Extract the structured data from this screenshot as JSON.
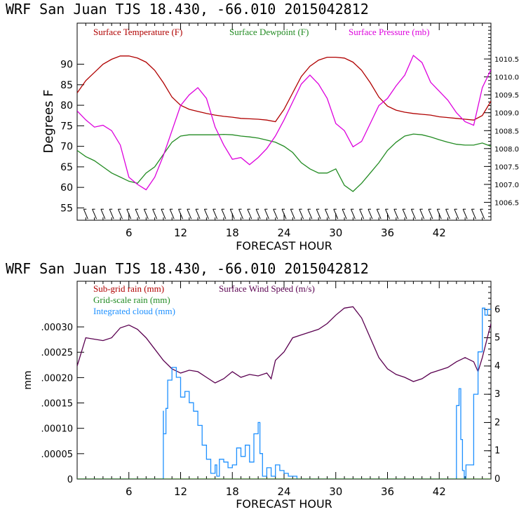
{
  "colors": {
    "temperature": "#b00000",
    "dewpoint": "#228b22",
    "pressure": "#dd00dd",
    "subgrid_rain": "#b00000",
    "wind": "#5a0050",
    "gridscale_rain": "#228b22",
    "cloud": "#1e90ff"
  },
  "chart_data": [
    {
      "type": "line",
      "title": "WRF   San Juan TJS  18.430, -66.010  2015042812",
      "xlabel": "FORECAST HOUR",
      "ylabel": "Degrees F",
      "xlim": [
        0,
        48
      ],
      "ylim": [
        52,
        100
      ],
      "y2lim": [
        1006.0,
        1011.5
      ],
      "x_ticks": [
        "6",
        "12",
        "18",
        "24",
        "30",
        "36",
        "42"
      ],
      "x_tick_values": [
        6,
        12,
        18,
        24,
        30,
        36,
        42
      ],
      "y_ticks": [
        "55",
        "60",
        "65",
        "70",
        "75",
        "80",
        "85",
        "90"
      ],
      "y_tick_values": [
        55,
        60,
        65,
        70,
        75,
        80,
        85,
        90
      ],
      "y2_ticks": [
        "1006.5",
        "1007.0",
        "1007.5",
        "1008.0",
        "1008.5",
        "1009.0",
        "1009.5",
        "1010.0",
        "1010.5"
      ],
      "y2_tick_values": [
        1006.5,
        1007.0,
        1007.5,
        1008.0,
        1008.5,
        1009.0,
        1009.5,
        1010.0,
        1010.5
      ],
      "legend": [
        "Surface Temperature (F)",
        "Surface Dewpoint (F)",
        "Surface Pressure (mb)"
      ],
      "wind_barbs_y": 53.5,
      "series": [
        {
          "name": "Surface Temperature (F)",
          "axis": "left",
          "x": [
            0,
            1,
            2,
            3,
            4,
            5,
            6,
            7,
            8,
            9,
            10,
            11,
            12,
            13,
            14,
            15,
            16,
            17,
            18,
            19,
            20,
            21,
            22,
            23,
            24,
            25,
            26,
            27,
            28,
            29,
            30,
            31,
            32,
            33,
            34,
            35,
            36,
            37,
            38,
            39,
            40,
            41,
            42,
            43,
            44,
            45,
            46,
            47,
            48
          ],
          "values": [
            83,
            86,
            88,
            90,
            91.2,
            92,
            92,
            91.5,
            90.5,
            88.5,
            85.5,
            82,
            80,
            79,
            78.5,
            78,
            77.6,
            77.3,
            77.1,
            76.8,
            76.7,
            76.6,
            76.4,
            76,
            79,
            83,
            87,
            89.5,
            91,
            91.7,
            91.7,
            91.5,
            90.5,
            88.5,
            85.5,
            82,
            79.8,
            78.8,
            78.3,
            78,
            77.8,
            77.6,
            77.2,
            77,
            76.8,
            76.6,
            76.4,
            77.5,
            81
          ]
        },
        {
          "name": "Surface Dewpoint (F)",
          "axis": "left",
          "x": [
            0,
            1,
            2,
            3,
            4,
            5,
            6,
            7,
            8,
            9,
            10,
            11,
            12,
            13,
            14,
            15,
            16,
            17,
            18,
            19,
            20,
            21,
            22,
            23,
            24,
            25,
            26,
            27,
            28,
            29,
            30,
            31,
            32,
            33,
            34,
            35,
            36,
            37,
            38,
            39,
            40,
            41,
            42,
            43,
            44,
            45,
            46,
            47,
            48
          ],
          "values": [
            69,
            67.5,
            66.5,
            65,
            63.5,
            62.5,
            61.5,
            61,
            63.5,
            65,
            68,
            71,
            72.5,
            72.8,
            72.8,
            72.8,
            72.8,
            72.9,
            72.8,
            72.5,
            72.3,
            72,
            71.5,
            71,
            70,
            68.5,
            66,
            64.5,
            63.5,
            63.5,
            64.5,
            60.5,
            59,
            61,
            63.5,
            66,
            69,
            71,
            72.5,
            73,
            72.8,
            72.3,
            71.6,
            71,
            70.5,
            70.3,
            70.3,
            70.8,
            70
          ]
        },
        {
          "name": "Surface Pressure (mb)",
          "axis": "right",
          "x": [
            0,
            1,
            2,
            3,
            4,
            5,
            6,
            7,
            8,
            9,
            10,
            11,
            12,
            13,
            14,
            15,
            16,
            17,
            18,
            19,
            20,
            21,
            22,
            23,
            24,
            25,
            26,
            27,
            28,
            29,
            30,
            31,
            32,
            33,
            34,
            35,
            36,
            37,
            38,
            39,
            40,
            41,
            42,
            43,
            44,
            45,
            46,
            47,
            48
          ],
          "values": [
            1009.05,
            1008.8,
            1008.6,
            1008.65,
            1008.5,
            1008.1,
            1007.2,
            1007.0,
            1006.85,
            1007.2,
            1007.8,
            1008.5,
            1009.2,
            1009.5,
            1009.7,
            1009.4,
            1008.6,
            1008.1,
            1007.7,
            1007.75,
            1007.55,
            1007.75,
            1008.0,
            1008.35,
            1008.8,
            1009.3,
            1009.8,
            1010.05,
            1009.8,
            1009.4,
            1008.7,
            1008.5,
            1008.05,
            1008.2,
            1008.7,
            1009.2,
            1009.4,
            1009.75,
            1010.05,
            1010.6,
            1010.4,
            1009.85,
            1009.6,
            1009.35,
            1009.0,
            1008.75,
            1008.65,
            1009.7,
            1010.2
          ]
        }
      ]
    },
    {
      "type": "line",
      "title": "WRF   San Juan TJS  18.430, -66.010  2015042812",
      "xlabel": "FORECAST HOUR",
      "ylabel": "mm",
      "xlim": [
        0,
        48
      ],
      "ylim": [
        0,
        0.00039
      ],
      "y2lim": [
        0,
        7.0
      ],
      "x_ticks": [
        "6",
        "12",
        "18",
        "24",
        "30",
        "36",
        "42"
      ],
      "x_tick_values": [
        6,
        12,
        18,
        24,
        30,
        36,
        42
      ],
      "y_ticks": [
        "0",
        ".00005",
        ".00010",
        ".00015",
        ".00020",
        ".00025",
        ".00030"
      ],
      "y_tick_values": [
        0,
        5e-05,
        0.0001,
        0.00015,
        0.0002,
        0.00025,
        0.0003
      ],
      "y2_ticks": [
        "0",
        "1",
        "2",
        "3",
        "4",
        "5",
        "6"
      ],
      "y2_tick_values": [
        0,
        1,
        2,
        3,
        4,
        5,
        6
      ],
      "legend": [
        "Sub-grid rain (mm)",
        "Surface Wind Speed (m/s)",
        "Grid-scale rain (mm)",
        "Integrated cloud (mm)"
      ],
      "series": [
        {
          "name": "Surface Wind Speed (m/s)",
          "axis": "right",
          "x": [
            0,
            1,
            2,
            3,
            4,
            5,
            6,
            7,
            8,
            9,
            10,
            11,
            12,
            13,
            14,
            15,
            16,
            17,
            18,
            19,
            20,
            21,
            22,
            22.5,
            23,
            24,
            25,
            26,
            27,
            28,
            29,
            30,
            31,
            32,
            33,
            34,
            35,
            36,
            37,
            38,
            39,
            40,
            41,
            42,
            43,
            44,
            45,
            46,
            46.5,
            47,
            48
          ],
          "values": [
            4.0,
            5.0,
            4.95,
            4.9,
            5.0,
            5.35,
            5.45,
            5.3,
            5.0,
            4.6,
            4.2,
            3.9,
            3.75,
            3.85,
            3.8,
            3.6,
            3.4,
            3.55,
            3.8,
            3.6,
            3.7,
            3.65,
            3.75,
            3.55,
            4.2,
            4.5,
            5.0,
            5.1,
            5.2,
            5.3,
            5.5,
            5.8,
            6.05,
            6.1,
            5.7,
            5.0,
            4.3,
            3.9,
            3.7,
            3.6,
            3.45,
            3.55,
            3.75,
            3.85,
            3.95,
            4.15,
            4.3,
            4.15,
            3.8,
            4.3,
            5.5
          ]
        },
        {
          "name": "Integrated cloud (mm)",
          "axis": "right",
          "x": [
            0,
            10,
            10.01,
            10.3,
            10.5,
            11,
            11.5,
            12,
            12.5,
            13,
            13.5,
            14,
            14.5,
            15,
            15.5,
            16,
            16.2,
            16.5,
            17,
            17.5,
            18,
            18.5,
            19,
            19.5,
            20,
            20.5,
            21,
            21.2,
            21.5,
            22,
            22.5,
            23,
            23.5,
            24,
            24.5,
            25,
            25.5,
            26,
            44,
            44.3,
            44.5,
            44.7,
            44.9,
            45.1,
            46,
            46.5,
            47,
            47.3,
            47.6,
            48
          ],
          "values": [
            0,
            0,
            2.4,
            1.6,
            2.5,
            3.5,
            3.95,
            3.6,
            2.9,
            3.1,
            2.7,
            2.4,
            1.9,
            1.2,
            0.7,
            0.2,
            0.5,
            0.1,
            0.7,
            0.6,
            0.4,
            0.5,
            1.1,
            0.8,
            1.2,
            0.6,
            1.6,
            2.0,
            0.9,
            0.1,
            0.4,
            0.1,
            0.5,
            0.3,
            0.2,
            0.1,
            0.1,
            0,
            0,
            2.6,
            3.2,
            1.4,
            0.3,
            0,
            0.5,
            3.0,
            4.5,
            6.05,
            5.8,
            6.0
          ]
        },
        {
          "name": "Sub-grid rain (mm)",
          "axis": "left",
          "x": [
            0,
            48
          ],
          "values": [
            0,
            0
          ]
        },
        {
          "name": "Grid-scale rain (mm)",
          "axis": "left",
          "x": [
            0,
            48
          ],
          "values": [
            0,
            0
          ]
        }
      ]
    }
  ]
}
